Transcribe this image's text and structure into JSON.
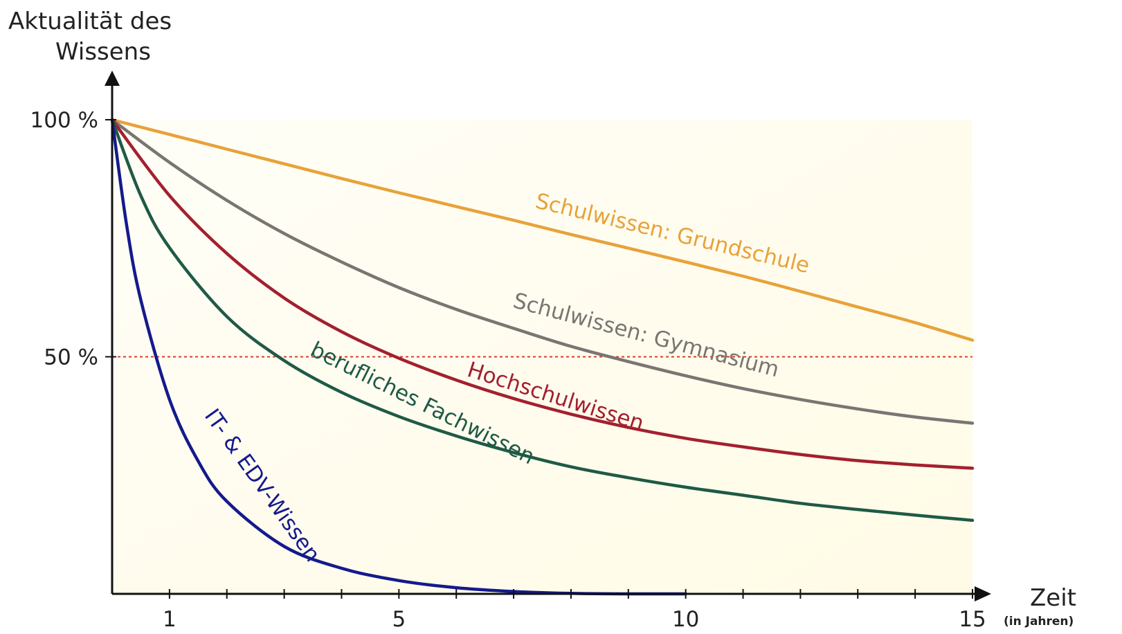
{
  "chart_data": {
    "type": "line",
    "title": "",
    "ylabel": [
      "Aktualität des",
      "Wissens"
    ],
    "xlabel": "Zeit",
    "xlabel_unit": "(in Jahren)",
    "xlim": [
      0,
      15
    ],
    "ylim": [
      0,
      100
    ],
    "x_ticks": [
      1,
      5,
      10,
      15
    ],
    "x_minor_ticks": [
      1,
      2,
      3,
      4,
      5,
      6,
      7,
      8,
      9,
      10,
      11,
      12,
      13,
      14,
      15
    ],
    "y_ticks": [
      {
        "value": 100,
        "label": "100 %"
      },
      {
        "value": 50,
        "label": "50 %"
      }
    ],
    "reference_line": {
      "value": 50,
      "style": "dotted",
      "color": "#d63a2a"
    },
    "plot_background": "#fffdf0",
    "series": [
      {
        "name": "Schulwissen: Grundschule",
        "color": "#e8a23a",
        "x": [
          0,
          1,
          2,
          3,
          4,
          5,
          6,
          7,
          8,
          9,
          10,
          11,
          12,
          13,
          14,
          15
        ],
        "y": [
          100,
          96.9,
          93.8,
          90.7,
          87.6,
          84.6,
          81.7,
          78.8,
          75.8,
          72.9,
          70,
          67,
          63.8,
          60.5,
          57.2,
          53.5
        ]
      },
      {
        "name": "Schulwissen: Gymnasium",
        "color": "#7a7572",
        "x": [
          0,
          1,
          2,
          3,
          4,
          5,
          6,
          7,
          8,
          9,
          10,
          11,
          12,
          13,
          14,
          15
        ],
        "y": [
          100,
          91,
          83,
          76,
          70,
          64.6,
          60,
          56,
          52.2,
          49,
          46,
          43.3,
          41,
          39,
          37.3,
          36
        ]
      },
      {
        "name": "Hochschulwissen",
        "color": "#a3202f",
        "x": [
          0,
          1,
          2,
          3,
          4,
          5,
          6,
          7,
          8,
          9,
          10,
          11,
          12,
          13,
          14,
          15
        ],
        "y": [
          100,
          84,
          71.8,
          62.4,
          55.3,
          49.7,
          45.1,
          41.2,
          37.9,
          35.1,
          32.8,
          31,
          29.4,
          28.1,
          27.2,
          26.5
        ]
      },
      {
        "name": "berufliches Fachwissen",
        "color": "#1f5a46",
        "x": [
          0,
          0.5,
          1,
          2,
          3,
          4,
          5,
          6,
          7,
          8,
          9,
          10,
          11,
          12,
          13,
          14,
          15
        ],
        "y": [
          100,
          84,
          73,
          58.5,
          49.2,
          42.5,
          37.4,
          33.3,
          29.8,
          26.8,
          24.5,
          22.5,
          20.8,
          19.1,
          17.8,
          16.6,
          15.5
        ]
      },
      {
        "name": "IT- & EDV-Wissen",
        "color": "#141a8c",
        "x": [
          0,
          0.25,
          0.5,
          1,
          1.5,
          2,
          3,
          4,
          5,
          6,
          7,
          8,
          9,
          10
        ],
        "y": [
          100,
          78,
          62,
          41,
          28,
          19.5,
          10,
          5.4,
          2.8,
          1.3,
          0.5,
          0.1,
          0,
          0
        ]
      }
    ],
    "series_label_text": [
      "Schulwissen: Grundschule",
      "Schulwissen: Gymnasium",
      "Hochschulwissen",
      "berufliches Fachwissen",
      "IT- & EDV-Wissen"
    ]
  }
}
